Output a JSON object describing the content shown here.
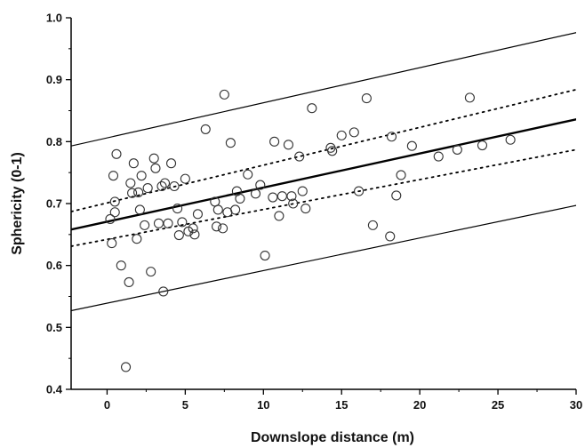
{
  "chart_data": {
    "type": "scatter",
    "title": "",
    "xlabel": "Downslope distance (m)",
    "ylabel": "Sphericity (0-1)",
    "xlim": [
      -2.3,
      30
    ],
    "ylim": [
      0.4,
      1.0
    ],
    "x_ticks": [
      0,
      5,
      10,
      15,
      20,
      25,
      30
    ],
    "y_ticks": [
      0.4,
      0.5,
      0.6,
      0.7,
      0.8,
      0.9,
      1.0
    ],
    "x_tick_labels": [
      "0",
      "5",
      "10",
      "15",
      "20",
      "25",
      "30"
    ],
    "y_tick_labels": [
      "0.4",
      "0.5",
      "0.6",
      "0.7",
      "0.8",
      "0.9",
      "1.0"
    ],
    "grid": false,
    "legend": "none",
    "colors": {
      "axis": "#000000",
      "points": "#333333"
    },
    "points": [
      {
        "x": 0.2,
        "y": 0.675
      },
      {
        "x": 0.3,
        "y": 0.636
      },
      {
        "x": 0.4,
        "y": 0.745
      },
      {
        "x": 0.5,
        "y": 0.703
      },
      {
        "x": 0.5,
        "y": 0.686
      },
      {
        "x": 0.6,
        "y": 0.78
      },
      {
        "x": 0.9,
        "y": 0.6
      },
      {
        "x": 1.2,
        "y": 0.436
      },
      {
        "x": 1.4,
        "y": 0.573
      },
      {
        "x": 1.5,
        "y": 0.733
      },
      {
        "x": 1.6,
        "y": 0.717
      },
      {
        "x": 1.7,
        "y": 0.765
      },
      {
        "x": 1.9,
        "y": 0.643
      },
      {
        "x": 2.0,
        "y": 0.718
      },
      {
        "x": 2.1,
        "y": 0.69
      },
      {
        "x": 2.2,
        "y": 0.745
      },
      {
        "x": 2.4,
        "y": 0.665
      },
      {
        "x": 2.6,
        "y": 0.725
      },
      {
        "x": 2.8,
        "y": 0.59
      },
      {
        "x": 3.0,
        "y": 0.773
      },
      {
        "x": 3.1,
        "y": 0.757
      },
      {
        "x": 3.3,
        "y": 0.668
      },
      {
        "x": 3.5,
        "y": 0.728
      },
      {
        "x": 3.6,
        "y": 0.558
      },
      {
        "x": 3.7,
        "y": 0.733
      },
      {
        "x": 3.9,
        "y": 0.668
      },
      {
        "x": 4.1,
        "y": 0.765
      },
      {
        "x": 4.3,
        "y": 0.728
      },
      {
        "x": 4.5,
        "y": 0.692
      },
      {
        "x": 4.6,
        "y": 0.649
      },
      {
        "x": 4.8,
        "y": 0.67
      },
      {
        "x": 5.0,
        "y": 0.74
      },
      {
        "x": 5.2,
        "y": 0.655
      },
      {
        "x": 5.5,
        "y": 0.66
      },
      {
        "x": 5.6,
        "y": 0.65
      },
      {
        "x": 5.8,
        "y": 0.683
      },
      {
        "x": 6.3,
        "y": 0.82
      },
      {
        "x": 6.9,
        "y": 0.703
      },
      {
        "x": 7.0,
        "y": 0.663
      },
      {
        "x": 7.1,
        "y": 0.69
      },
      {
        "x": 7.4,
        "y": 0.66
      },
      {
        "x": 7.5,
        "y": 0.876
      },
      {
        "x": 7.7,
        "y": 0.686
      },
      {
        "x": 7.9,
        "y": 0.798
      },
      {
        "x": 8.2,
        "y": 0.69
      },
      {
        "x": 8.3,
        "y": 0.72
      },
      {
        "x": 8.5,
        "y": 0.708
      },
      {
        "x": 9.0,
        "y": 0.747
      },
      {
        "x": 9.5,
        "y": 0.716
      },
      {
        "x": 9.8,
        "y": 0.73
      },
      {
        "x": 10.1,
        "y": 0.616
      },
      {
        "x": 10.6,
        "y": 0.71
      },
      {
        "x": 10.7,
        "y": 0.8
      },
      {
        "x": 11.0,
        "y": 0.68
      },
      {
        "x": 11.2,
        "y": 0.712
      },
      {
        "x": 11.6,
        "y": 0.795
      },
      {
        "x": 11.8,
        "y": 0.712
      },
      {
        "x": 11.9,
        "y": 0.7
      },
      {
        "x": 12.3,
        "y": 0.776
      },
      {
        "x": 12.5,
        "y": 0.72
      },
      {
        "x": 12.7,
        "y": 0.692
      },
      {
        "x": 13.1,
        "y": 0.854
      },
      {
        "x": 14.3,
        "y": 0.79
      },
      {
        "x": 14.4,
        "y": 0.785
      },
      {
        "x": 15.0,
        "y": 0.81
      },
      {
        "x": 15.8,
        "y": 0.815
      },
      {
        "x": 16.1,
        "y": 0.72
      },
      {
        "x": 16.6,
        "y": 0.87
      },
      {
        "x": 17.0,
        "y": 0.665
      },
      {
        "x": 18.1,
        "y": 0.647
      },
      {
        "x": 18.2,
        "y": 0.808
      },
      {
        "x": 18.5,
        "y": 0.713
      },
      {
        "x": 18.8,
        "y": 0.746
      },
      {
        "x": 19.5,
        "y": 0.793
      },
      {
        "x": 21.2,
        "y": 0.776
      },
      {
        "x": 22.4,
        "y": 0.787
      },
      {
        "x": 23.2,
        "y": 0.871
      },
      {
        "x": 24.0,
        "y": 0.794
      },
      {
        "x": 25.8,
        "y": 0.803
      }
    ],
    "lines": [
      {
        "style": "solid-thick",
        "x": [
          -2.3,
          30
        ],
        "y": [
          0.658,
          0.836
        ]
      },
      {
        "style": "dotted",
        "x": [
          -2.3,
          30
        ],
        "y": [
          0.687,
          0.884
        ]
      },
      {
        "style": "dotted",
        "x": [
          -2.3,
          30
        ],
        "y": [
          0.631,
          0.787
        ]
      },
      {
        "style": "solid-thin",
        "x": [
          -2.3,
          30
        ],
        "y": [
          0.793,
          0.976
        ]
      },
      {
        "style": "solid-thin",
        "x": [
          -2.3,
          30
        ],
        "y": [
          0.527,
          0.697
        ]
      }
    ]
  }
}
